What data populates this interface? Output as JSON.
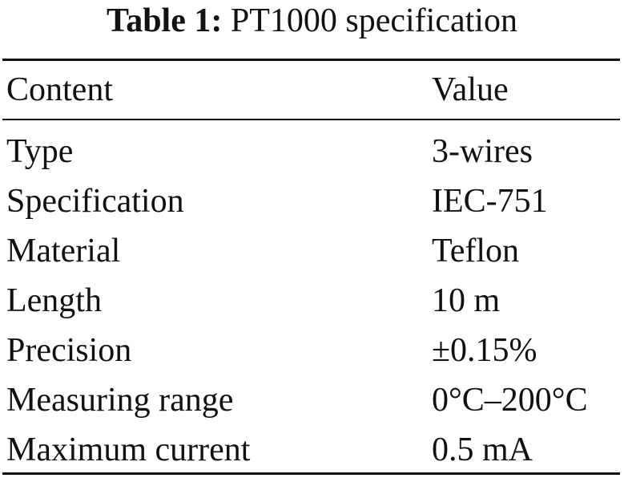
{
  "caption": {
    "label": "Table 1:",
    "text": "PT1000 specification"
  },
  "table": {
    "headers": [
      "Content",
      "Value"
    ],
    "rows": [
      [
        "Type",
        "3-wires"
      ],
      [
        "Specification",
        "IEC-751"
      ],
      [
        "Material",
        "Teflon"
      ],
      [
        "Length",
        "10 m"
      ],
      [
        "Precision",
        "±0.15%"
      ],
      [
        "Measuring range",
        "0°C–200°C"
      ],
      [
        "Maximum current",
        "0.5 mA"
      ]
    ]
  }
}
